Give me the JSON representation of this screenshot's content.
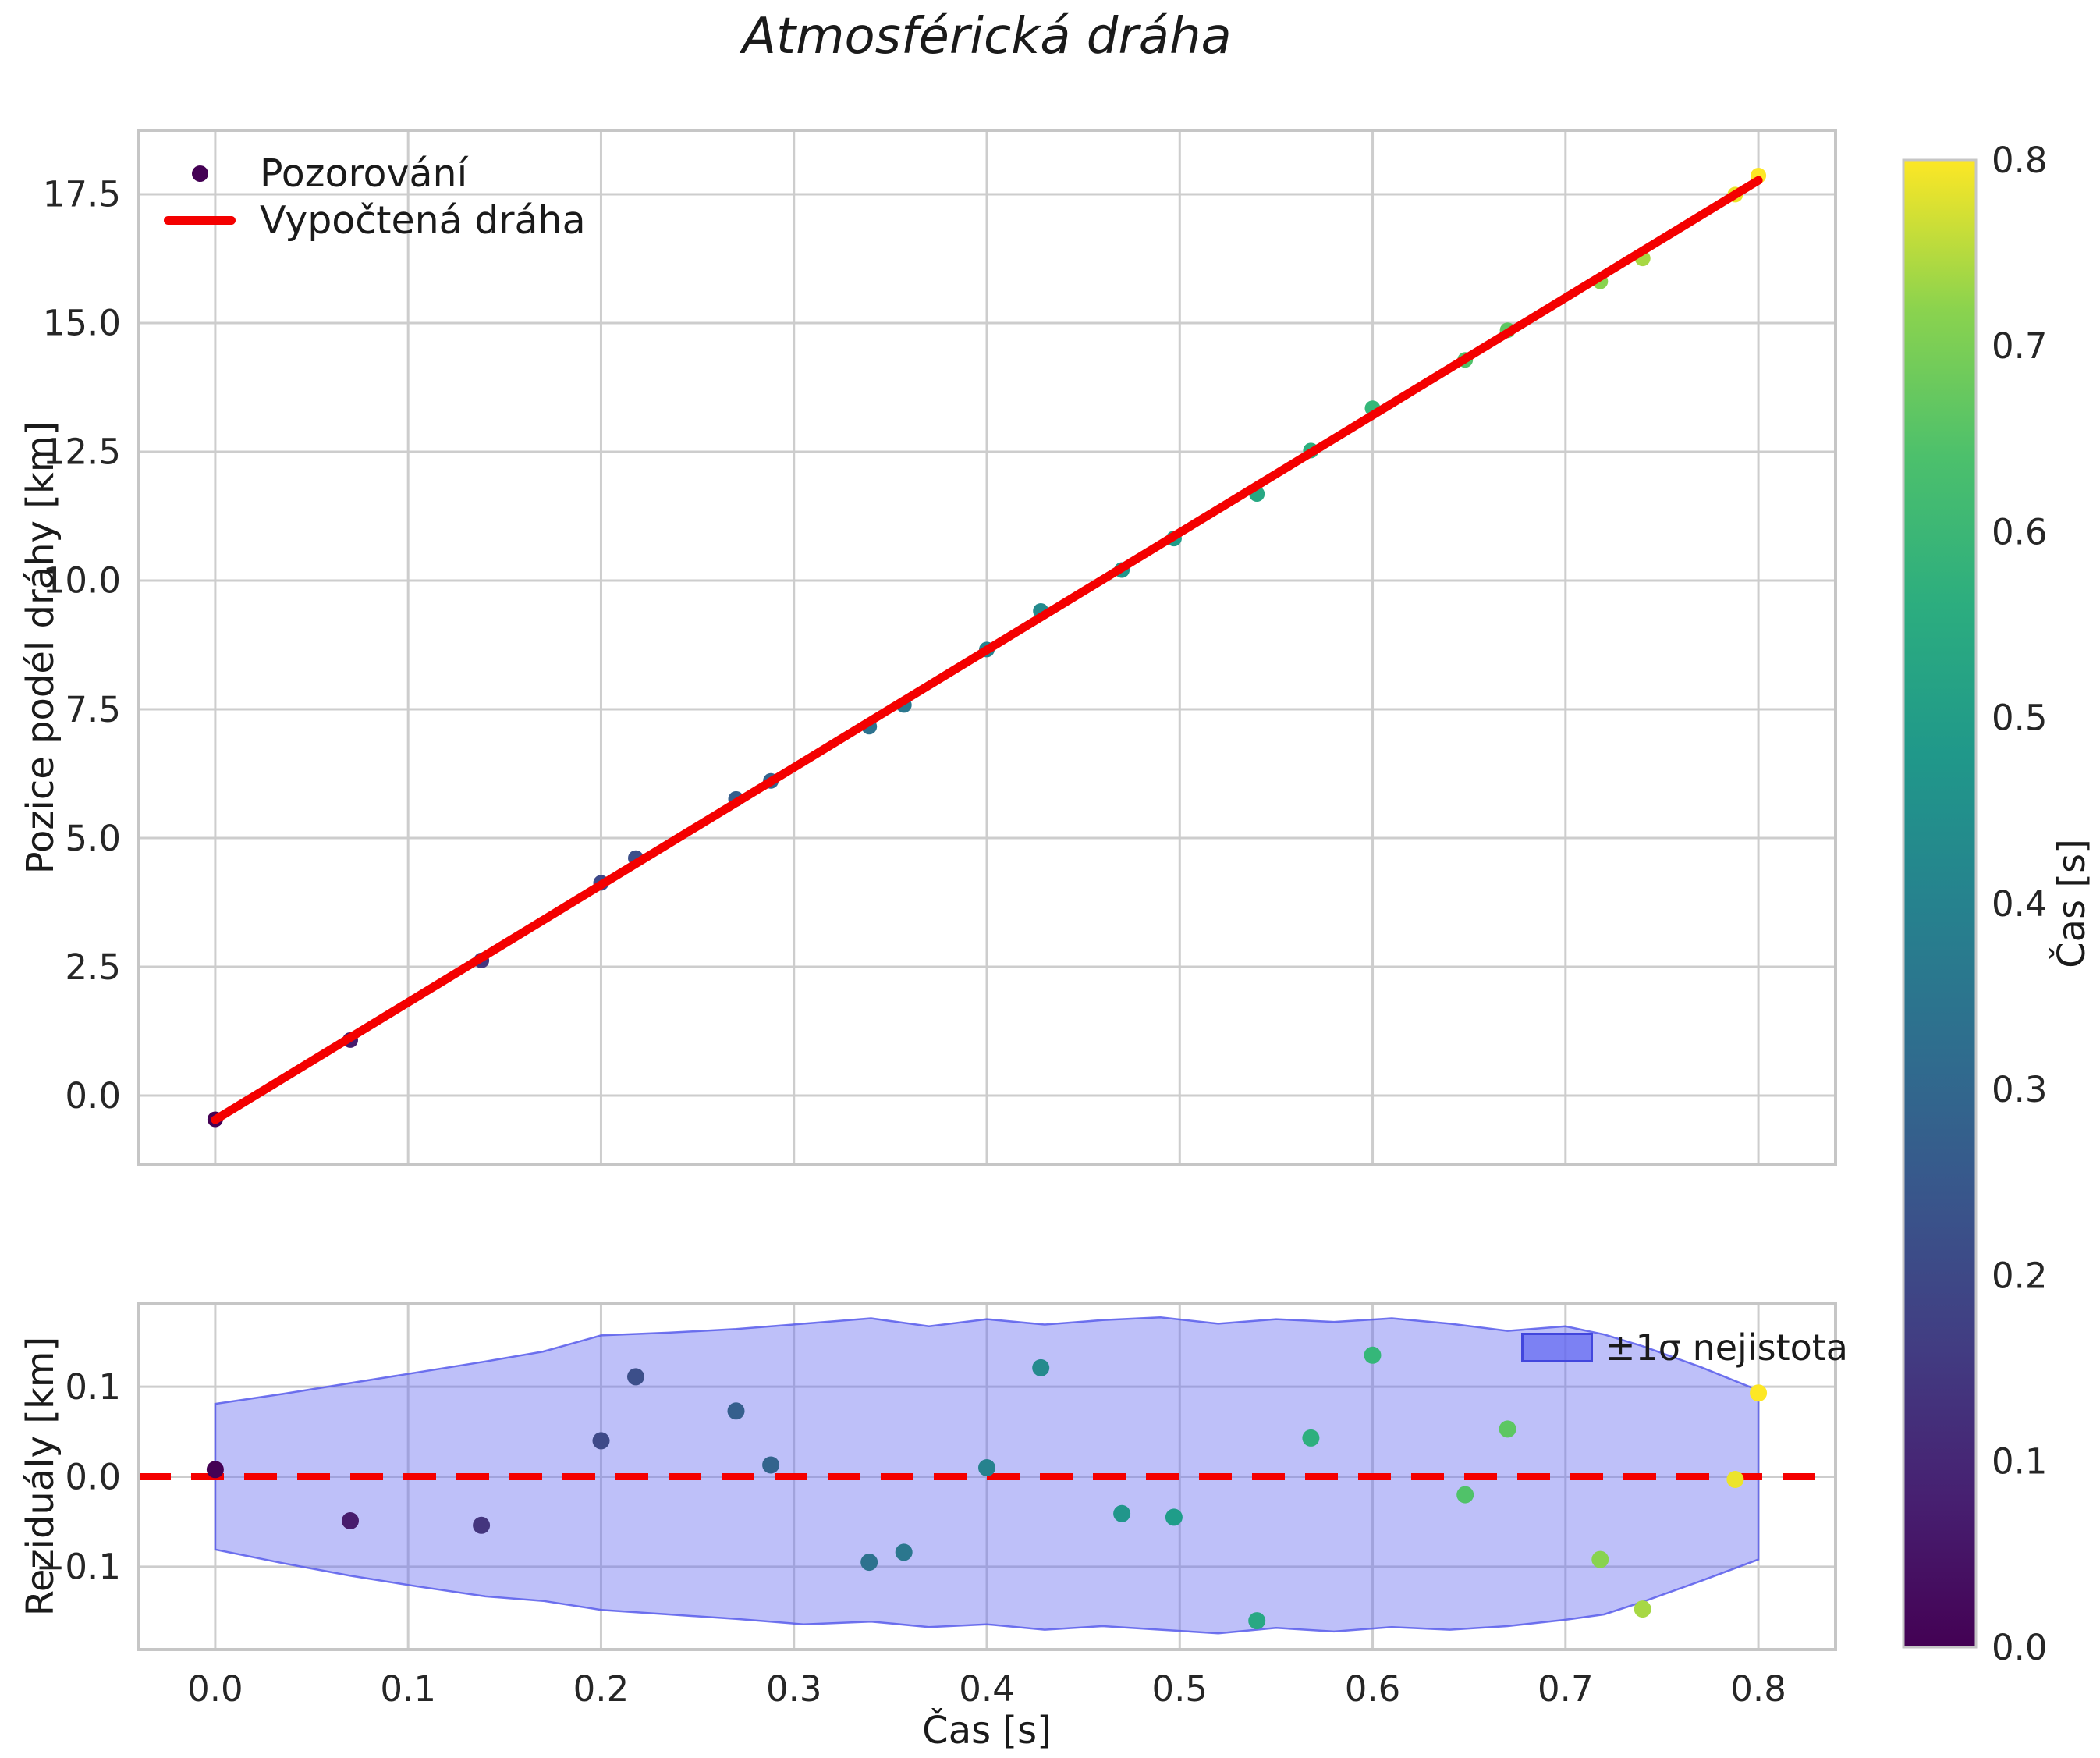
{
  "title": "Atmosférická dráha",
  "colors": {
    "fit_line": "#f40000",
    "zero_line": "#f40000",
    "band_fill": "rgba(99,104,240,0.42)",
    "band_edge": "rgba(88,92,235,0.85)",
    "legend_swatch_fill": "rgba(99,104,240,0.72)",
    "legend_swatch_edge": "#4246dd",
    "grid": "#cdcdcd",
    "spine": "#c6c6c6",
    "tick_text": "#262626",
    "label_text": "#1a1a1a",
    "background": "#ffffff"
  },
  "chart_data": [
    {
      "type": "scatter",
      "title": "Atmosférická dráha",
      "xlabel": "",
      "ylabel": "Pozice podél dráhy [km]",
      "legend": [
        "Pozorování",
        "Vypočtená dráha"
      ],
      "legend_position": "upper left",
      "grid": true,
      "xlim": [
        -0.04,
        0.84
      ],
      "ylim": [
        -1.333,
        18.742
      ],
      "xticks": [
        0.0,
        0.1,
        0.2,
        0.3,
        0.4,
        0.5,
        0.6,
        0.7,
        0.8
      ],
      "yticks": [
        0.0,
        2.5,
        5.0,
        7.5,
        10.0,
        12.5,
        15.0,
        17.5
      ],
      "ytick_labels": [
        "0.0",
        "2.5",
        "5.0",
        "7.5",
        "10.0",
        "12.5",
        "15.0",
        "17.5"
      ],
      "points": {
        "color_by": "time, viridis colormap, vmin 0.0 vmax 0.8",
        "t": [
          0.0,
          0.07,
          0.138,
          0.2,
          0.218,
          0.27,
          0.288,
          0.339,
          0.357,
          0.4,
          0.428,
          0.47,
          0.497,
          0.54,
          0.568,
          0.6,
          0.648,
          0.67,
          0.718,
          0.74,
          0.788,
          0.8
        ],
        "residual_km": [
          0.008,
          -0.049,
          -0.054,
          0.04,
          0.111,
          0.073,
          0.013,
          -0.095,
          -0.084,
          0.01,
          0.121,
          -0.041,
          -0.045,
          -0.16,
          0.043,
          0.135,
          -0.02,
          0.053,
          -0.092,
          -0.147,
          -0.003,
          0.093
        ]
      },
      "fit_line": {
        "slope_km_per_s": 22.8,
        "intercept_km": -0.47,
        "x_range": [
          0.0,
          0.8
        ]
      }
    },
    {
      "type": "area",
      "xlabel": "Čas [s]",
      "ylabel": "Reziduály [km]",
      "legend": "±1σ nejistota",
      "grid": true,
      "xlim": [
        -0.04,
        0.84
      ],
      "ylim": [
        -0.192,
        0.192
      ],
      "xticks": [
        0.0,
        0.1,
        0.2,
        0.3,
        0.4,
        0.5,
        0.6,
        0.7,
        0.8
      ],
      "xtick_labels": [
        "0.0",
        "0.1",
        "0.2",
        "0.3",
        "0.4",
        "0.5",
        "0.6",
        "0.7",
        "0.8"
      ],
      "yticks": [
        -0.1,
        0.0,
        0.1
      ],
      "ytick_labels": [
        "−0.1",
        "0.0",
        "0.1"
      ],
      "zero_line_y": 0.0,
      "band": {
        "t": [
          0.0,
          0.035,
          0.07,
          0.105,
          0.14,
          0.17,
          0.2,
          0.235,
          0.27,
          0.305,
          0.34,
          0.37,
          0.4,
          0.43,
          0.46,
          0.49,
          0.52,
          0.55,
          0.58,
          0.61,
          0.64,
          0.67,
          0.7,
          0.72,
          0.74,
          0.77,
          0.8
        ],
        "upper": [
          0.081,
          0.092,
          0.104,
          0.116,
          0.128,
          0.139,
          0.157,
          0.16,
          0.164,
          0.17,
          0.176,
          0.167,
          0.175,
          0.169,
          0.174,
          0.177,
          0.17,
          0.175,
          0.172,
          0.176,
          0.17,
          0.162,
          0.167,
          0.158,
          0.145,
          0.122,
          0.096
        ],
        "lower": [
          -0.081,
          -0.096,
          -0.11,
          -0.122,
          -0.133,
          -0.138,
          -0.148,
          -0.153,
          -0.158,
          -0.164,
          -0.161,
          -0.167,
          -0.164,
          -0.17,
          -0.166,
          -0.17,
          -0.174,
          -0.168,
          -0.172,
          -0.167,
          -0.17,
          -0.166,
          -0.159,
          -0.153,
          -0.139,
          -0.116,
          -0.092
        ]
      }
    },
    {
      "type": "colorbar",
      "label": "Čas [s]",
      "cmap": "viridis",
      "vmin": 0.0,
      "vmax": 0.8,
      "ticks": [
        0.0,
        0.1,
        0.2,
        0.3,
        0.4,
        0.5,
        0.6,
        0.7,
        0.8
      ],
      "tick_labels": [
        "0.0",
        "0.1",
        "0.2",
        "0.3",
        "0.4",
        "0.5",
        "0.6",
        "0.7",
        "0.8"
      ]
    }
  ]
}
